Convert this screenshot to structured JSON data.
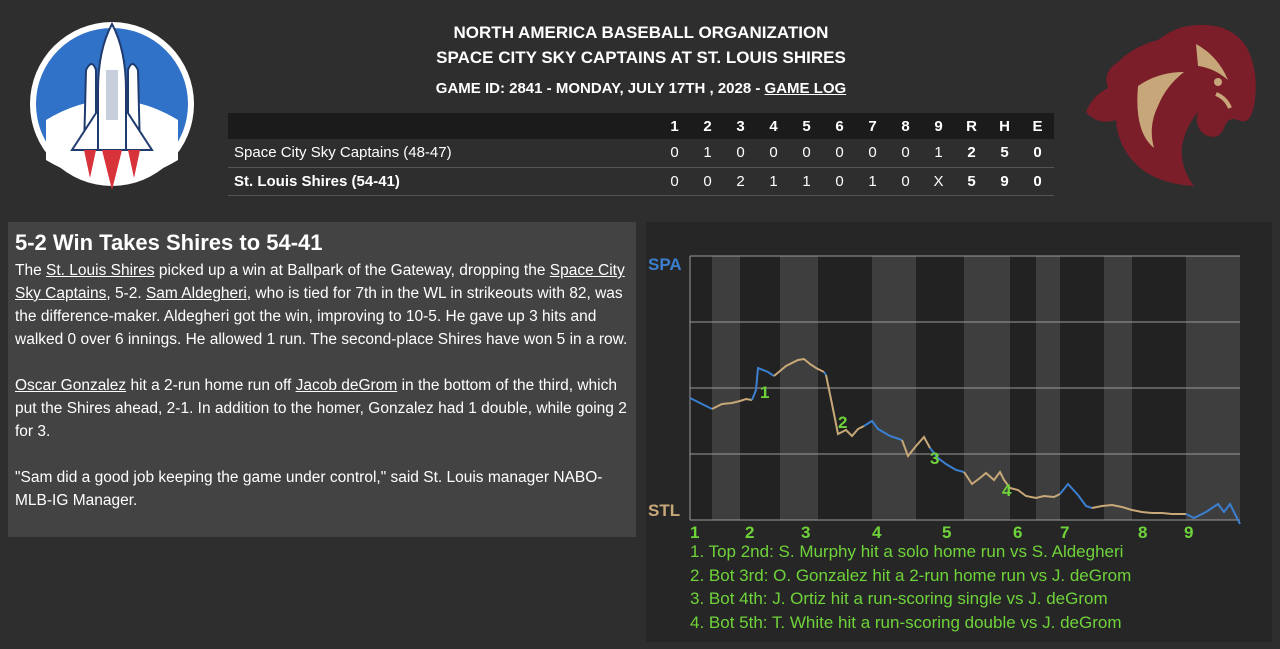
{
  "header": {
    "league": "NORTH AMERICA BASEBALL ORGANIZATION",
    "matchup": "SPACE CITY SKY CAPTAINS AT ST. LOUIS SHIRES",
    "game_info": "GAME ID: 2841 - MONDAY, JULY 17TH , 2028 - ",
    "game_log_link": "GAME LOG"
  },
  "linescore": {
    "columns": [
      "1",
      "2",
      "3",
      "4",
      "5",
      "6",
      "7",
      "8",
      "9",
      "R",
      "H",
      "E"
    ],
    "away": {
      "team": "Space City Sky Captains (48-47)",
      "innings": [
        "0",
        "1",
        "0",
        "0",
        "0",
        "0",
        "0",
        "0",
        "1"
      ],
      "R": "2",
      "H": "5",
      "E": "0"
    },
    "home": {
      "team": "St. Louis Shires (54-41)",
      "innings": [
        "0",
        "0",
        "2",
        "1",
        "1",
        "0",
        "1",
        "0",
        "X"
      ],
      "R": "5",
      "H": "9",
      "E": "0"
    }
  },
  "recap": {
    "title": "5-2 Win Takes Shires to 54-41",
    "p1": {
      "s1": "The ",
      "link_team_home": "St. Louis Shires",
      "s2": " picked up a win at Ballpark of the Gateway, dropping the ",
      "link_team_away": "Space City Sky Captains",
      "s3": ", 5-2. ",
      "link_pitcher": "Sam Aldegheri",
      "s4": ", who is tied for 7th in the WL in strikeouts with 82, was the difference-maker. Aldegheri got the win, improving to 10-5. He gave up 3 hits and walked 0 over 6 innings. He allowed 1 run. The second-place Shires have won 5 in a row."
    },
    "p2": {
      "link_batter": "Oscar Gonzalez",
      "s1": " hit a 2-run home run off ",
      "link_opp_pitcher": "Jacob deGrom",
      "s2": " in the bottom of the third, which put the Shires ahead, 2-1. In addition to the homer, Gonzalez had 1 double, while going 2 for 3."
    },
    "p3": "\"Sam did a good job keeping the game under control,\" said St. Louis manager NABO-MLB-IG Manager."
  },
  "win_probability": {
    "top_label": "SPA",
    "bottom_label": "STL",
    "innings": [
      "1",
      "2",
      "3",
      "4",
      "5",
      "6",
      "7",
      "8",
      "9"
    ],
    "colors": {
      "away": "#3b7fd1",
      "home": "#c8a878",
      "event": "#6fd33a"
    },
    "events": [
      "1. Top 2nd: S. Murphy hit a solo home run vs S. Aldegheri",
      "2. Bot 3rd: O. Gonzalez hit a 2-run home run vs J. deGrom",
      "3. Bot 4th: J. Ortiz hit a run-scoring single vs J. deGrom",
      "4. Bot 5th: T. White hit a run-scoring double vs J. deGrom"
    ],
    "event_markers": [
      "1",
      "2",
      "3",
      "4"
    ]
  }
}
